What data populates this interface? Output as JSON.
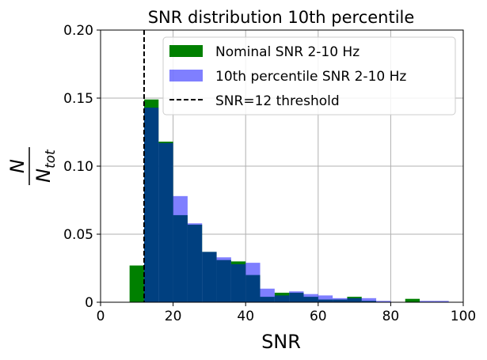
{
  "chart_data": {
    "type": "bar",
    "title": "SNR distribution 10th percentile",
    "xlabel": "SNR",
    "ylabel": {
      "numerator": "N",
      "denominator_main": "N",
      "denominator_sub": "tot"
    },
    "xlim": [
      0,
      100
    ],
    "ylim": [
      0,
      0.2
    ],
    "xticks": [
      "0",
      "20",
      "40",
      "60",
      "80",
      "100"
    ],
    "yticks": [
      "0",
      "0.05",
      "0.10",
      "0.15",
      "0.20"
    ],
    "grid": true,
    "legend_position": "upper-right",
    "bin_width": 4,
    "series": [
      {
        "name": "Nominal SNR 2-10 Hz",
        "color": "#008000",
        "opacity": 1.0,
        "bins": [
          8,
          12,
          16,
          20,
          24,
          28,
          32,
          36,
          40,
          44,
          48,
          52,
          56,
          60,
          64,
          68,
          72,
          84
        ],
        "values": [
          0.027,
          0.149,
          0.118,
          0.064,
          0.057,
          0.037,
          0.031,
          0.03,
          0.02,
          0.004,
          0.007,
          0.007,
          0.004,
          0.002,
          0.002,
          0.004,
          0.001,
          0.0025
        ]
      },
      {
        "name": "10th percentile SNR 2-10 Hz",
        "color": "#0000ff",
        "opacity": 0.5,
        "bins": [
          12,
          16,
          20,
          24,
          28,
          32,
          36,
          40,
          44,
          48,
          52,
          56,
          60,
          64,
          68,
          72,
          76,
          88,
          92
        ],
        "values": [
          0.143,
          0.117,
          0.078,
          0.058,
          0.037,
          0.033,
          0.028,
          0.029,
          0.01,
          0.005,
          0.008,
          0.006,
          0.005,
          0.003,
          0.003,
          0.003,
          0.001,
          0.001,
          0.001
        ]
      }
    ],
    "threshold": {
      "name": "SNR=12 threshold",
      "x": 12,
      "color": "#000000",
      "style": "dashed"
    }
  }
}
